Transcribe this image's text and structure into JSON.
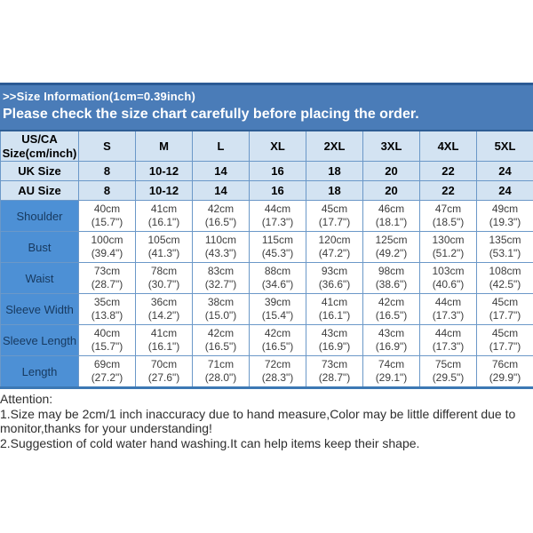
{
  "banner": {
    "line1": ">>Size Information(1cm=0.39inch)",
    "line2": "Please check the size chart carefully before placing the order."
  },
  "table": {
    "corner_header_line1": "US/CA",
    "corner_header_line2": "Size(cm/inch)",
    "size_columns": [
      "S",
      "M",
      "L",
      "XL",
      "2XL",
      "3XL",
      "4XL",
      "5XL"
    ],
    "uk_row": {
      "label": "UK Size",
      "values": [
        "8",
        "10-12",
        "14",
        "16",
        "18",
        "20",
        "22",
        "24"
      ]
    },
    "au_row": {
      "label": "AU Size",
      "values": [
        "8",
        "10-12",
        "14",
        "16",
        "18",
        "20",
        "22",
        "24"
      ]
    },
    "measure_rows": [
      {
        "label": "Shoulder",
        "cm": [
          "40cm",
          "41cm",
          "42cm",
          "44cm",
          "45cm",
          "46cm",
          "47cm",
          "49cm"
        ],
        "inch": [
          "(15.7\")",
          "(16.1\")",
          "(16.5\")",
          "(17.3\")",
          "(17.7\")",
          "(18.1\")",
          "(18.5\")",
          "(19.3\")"
        ]
      },
      {
        "label": "Bust",
        "cm": [
          "100cm",
          "105cm",
          "110cm",
          "115cm",
          "120cm",
          "125cm",
          "130cm",
          "135cm"
        ],
        "inch": [
          "(39.4\")",
          "(41.3\")",
          "(43.3\")",
          "(45.3\")",
          "(47.2\")",
          "(49.2\")",
          "(51.2\")",
          "(53.1\")"
        ]
      },
      {
        "label": "Waist",
        "cm": [
          "73cm",
          "78cm",
          "83cm",
          "88cm",
          "93cm",
          "98cm",
          "103cm",
          "108cm"
        ],
        "inch": [
          "(28.7\")",
          "(30.7\")",
          "(32.7\")",
          "(34.6\")",
          "(36.6\")",
          "(38.6\")",
          "(40.6\")",
          "(42.5\")"
        ]
      },
      {
        "label": "Sleeve Width",
        "cm": [
          "35cm",
          "36cm",
          "38cm",
          "39cm",
          "41cm",
          "42cm",
          "44cm",
          "45cm"
        ],
        "inch": [
          "(13.8\")",
          "(14.2\")",
          "(15.0\")",
          "(15.4\")",
          "(16.1\")",
          "(16.5\")",
          "(17.3\")",
          "(17.7\")"
        ]
      },
      {
        "label": "Sleeve Length",
        "cm": [
          "40cm",
          "41cm",
          "42cm",
          "42cm",
          "43cm",
          "43cm",
          "44cm",
          "45cm"
        ],
        "inch": [
          "(15.7\")",
          "(16.1\")",
          "(16.5\")",
          "(16.5\")",
          "(16.9\")",
          "(16.9\")",
          "(17.3\")",
          "(17.7\")"
        ]
      },
      {
        "label": "Length",
        "cm": [
          "69cm",
          "70cm",
          "71cm",
          "72cm",
          "73cm",
          "74cm",
          "75cm",
          "76cm"
        ],
        "inch": [
          "(27.2\")",
          "(27.6\")",
          "(28.0\")",
          "(28.3\")",
          "(28.7\")",
          "(29.1\")",
          "(29.5\")",
          "(29.9\")"
        ]
      }
    ]
  },
  "attention": {
    "title": "Attention:",
    "notes": [
      "1.Size may be 2cm/1 inch inaccuracy due to hand measure,Color may be little different due to monitor,thanks for your understanding!",
      "2.Suggestion of cold water hand washing.It can help items keep their shape."
    ]
  },
  "colors": {
    "banner_bg": "#4a7cb8",
    "banner_border_top": "#2b5a94",
    "header_cell_bg": "#d3e3f2",
    "row_label_bg": "#4d90d5",
    "table_border": "#6b98c8",
    "banner_text": "#ffffff"
  }
}
